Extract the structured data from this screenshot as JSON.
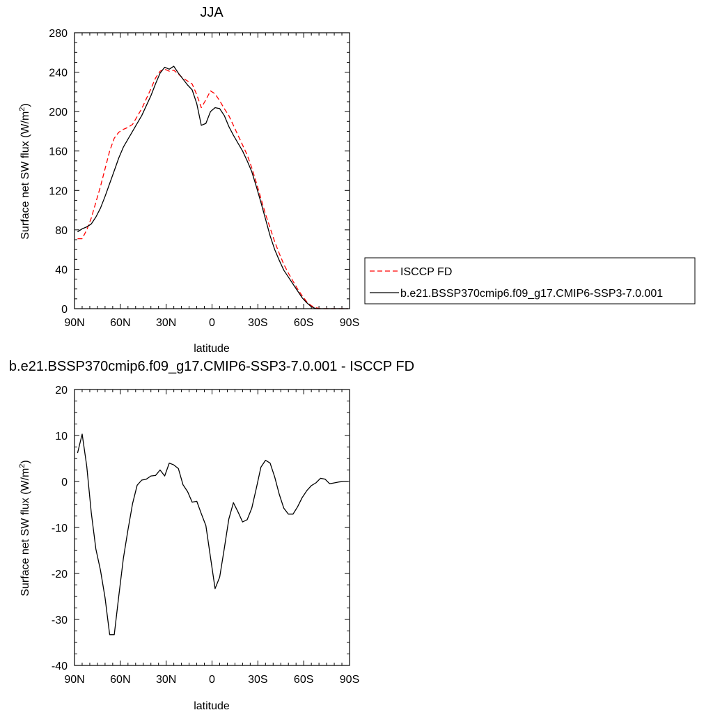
{
  "chart_data": [
    {
      "type": "line",
      "title": "JJA",
      "xlabel": "latitude",
      "ylabel": "Surface net SW flux (W/m",
      "ylabel_sup": "2",
      "ylabel_end": ")",
      "xlim": [
        90,
        -90
      ],
      "ylim": [
        0,
        280
      ],
      "xticks": [
        {
          "value": 90,
          "label": "90N"
        },
        {
          "value": 60,
          "label": "60N"
        },
        {
          "value": 30,
          "label": "30N"
        },
        {
          "value": 0,
          "label": "0"
        },
        {
          "value": -30,
          "label": "30S"
        },
        {
          "value": -60,
          "label": "60S"
        },
        {
          "value": -90,
          "label": "90S"
        }
      ],
      "yticks": [
        0,
        40,
        80,
        120,
        160,
        200,
        240,
        280
      ],
      "legend_position": "right, outside plot",
      "series": [
        {
          "name": "ISCCP FD",
          "color": "#ff0000",
          "dash": "dashed",
          "x": [
            88,
            85,
            82,
            79,
            76,
            73,
            70,
            67,
            64,
            61,
            58,
            55,
            52,
            49,
            46,
            43,
            40,
            37,
            34,
            31,
            28,
            25,
            22,
            19,
            16,
            13,
            10,
            7,
            4,
            1,
            -2,
            -5,
            -8,
            -11,
            -14,
            -17,
            -20,
            -23,
            -26,
            -29,
            -32,
            -35,
            -38,
            -41,
            -44,
            -47,
            -50,
            -53,
            -56,
            -59,
            -62,
            -65,
            -68,
            -71,
            -74,
            -77,
            -80,
            -83,
            -86,
            -89
          ],
          "y": [
            71,
            71,
            80,
            92,
            108,
            124,
            142,
            160,
            173,
            179,
            182,
            184,
            187,
            195,
            203,
            213,
            223,
            234,
            241,
            243,
            241,
            242,
            238,
            234,
            231,
            228,
            217,
            204,
            212,
            221,
            218,
            211,
            203,
            196,
            186,
            176,
            166,
            156,
            143,
            128,
            112,
            96,
            82,
            68,
            56,
            45,
            36,
            28,
            20,
            13,
            7,
            3,
            1,
            0,
            0,
            0,
            0,
            0,
            0,
            0
          ]
        },
        {
          "name": "b.e21.BSSP370cmip6.f09_g17.CMIP6-SSP3-7.0.001",
          "color": "#000000",
          "dash": "solid",
          "x": [
            88,
            85,
            82,
            79,
            76,
            73,
            70,
            67,
            64,
            61,
            58,
            55,
            52,
            49,
            46,
            43,
            40,
            37,
            34,
            31,
            28,
            25,
            22,
            19,
            16,
            13,
            10,
            7,
            4,
            1,
            -2,
            -5,
            -8,
            -11,
            -14,
            -17,
            -20,
            -23,
            -26,
            -29,
            -32,
            -35,
            -38,
            -41,
            -44,
            -47,
            -50,
            -53,
            -56,
            -59,
            -62,
            -65,
            -68,
            -71,
            -74,
            -77,
            -80,
            -83,
            -86,
            -89
          ],
          "y": [
            78,
            81,
            83,
            86,
            93,
            102,
            114,
            127,
            140,
            153,
            164,
            172,
            180,
            188,
            196,
            206,
            216,
            228,
            239,
            245,
            243,
            246,
            239,
            233,
            227,
            222,
            208,
            186,
            188,
            200,
            204,
            203,
            196,
            185,
            176,
            168,
            160,
            150,
            139,
            124,
            108,
            91,
            74,
            60,
            49,
            39,
            32,
            25,
            18,
            11,
            6,
            2,
            0,
            0,
            0,
            0,
            0,
            0,
            0,
            0
          ]
        }
      ]
    },
    {
      "type": "line",
      "title": "b.e21.BSSP370cmip6.f09_g17.CMIP6-SSP3-7.0.001 - ISCCP FD",
      "xlabel": "latitude",
      "ylabel": "Surface net SW flux (W/m",
      "ylabel_sup": "2",
      "ylabel_end": ")",
      "xlim": [
        90,
        -90
      ],
      "ylim": [
        -40,
        20
      ],
      "xticks": [
        {
          "value": 90,
          "label": "90N"
        },
        {
          "value": 60,
          "label": "60N"
        },
        {
          "value": 30,
          "label": "30N"
        },
        {
          "value": 0,
          "label": "0"
        },
        {
          "value": -30,
          "label": "30S"
        },
        {
          "value": -60,
          "label": "60S"
        },
        {
          "value": -90,
          "label": "90S"
        }
      ],
      "yticks": [
        -40,
        -30,
        -20,
        -10,
        0,
        10,
        20
      ],
      "series": [
        {
          "color": "#000000",
          "dash": "solid",
          "x": [
            88,
            85,
            82,
            79,
            76,
            73,
            70,
            67,
            64,
            61,
            58,
            55,
            52,
            49,
            46,
            43,
            40,
            37,
            34,
            31,
            28,
            25,
            22,
            19,
            16,
            13,
            10,
            7,
            4,
            1,
            -2,
            -5,
            -8,
            -11,
            -14,
            -17,
            -20,
            -23,
            -26,
            -29,
            -32,
            -35,
            -38,
            -41,
            -44,
            -47,
            -50,
            -53,
            -56,
            -59,
            -62,
            -65,
            -68,
            -71,
            -74,
            -77,
            -80,
            -83,
            -86,
            -89
          ],
          "y": [
            6.2,
            10.3,
            3.3,
            -6.8,
            -14.7,
            -19.3,
            -25.3,
            -33.3,
            -33.3,
            -24.9,
            -16.7,
            -10.5,
            -4.8,
            -0.8,
            0.3,
            0.5,
            1.2,
            1.3,
            2.5,
            1.2,
            4.0,
            3.6,
            2.8,
            -0.7,
            -2.2,
            -4.5,
            -4.3,
            -7.0,
            -9.6,
            -16.5,
            -23.3,
            -20.8,
            -14.6,
            -8.2,
            -4.6,
            -6.6,
            -8.8,
            -8.3,
            -5.8,
            -1.5,
            3.1,
            4.6,
            4.0,
            1.0,
            -2.8,
            -5.8,
            -7.1,
            -7.1,
            -5.5,
            -3.5,
            -2.0,
            -0.9,
            -0.3,
            0.7,
            0.5,
            -0.5,
            -0.3,
            -0.1,
            0.0,
            0.0
          ]
        }
      ]
    }
  ]
}
